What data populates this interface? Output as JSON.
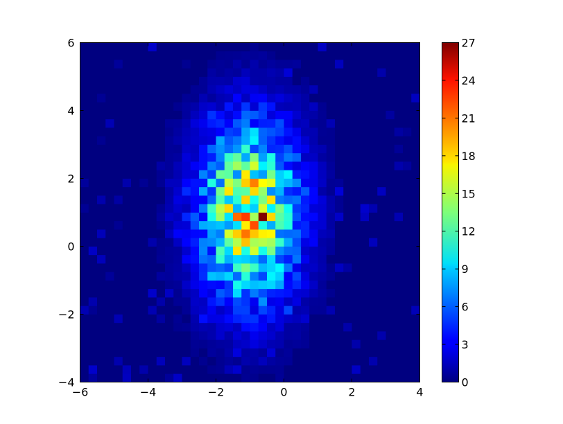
{
  "chart_data": {
    "type": "heatmap",
    "title": "",
    "xlabel": "",
    "ylabel": "",
    "xlim": [
      -6,
      4
    ],
    "ylim": [
      -4,
      6
    ],
    "grid": false,
    "colormap": "jet",
    "bins": 40,
    "x_ticks": [
      -6,
      -4,
      -2,
      0,
      2,
      4
    ],
    "x_tick_labels": [
      "−6",
      "−4",
      "−2",
      "0",
      "2",
      "4"
    ],
    "y_ticks": [
      -4,
      -2,
      0,
      2,
      4,
      6
    ],
    "y_tick_labels": [
      "−4",
      "−2",
      "0",
      "2",
      "4",
      "6"
    ],
    "colorbar": {
      "range": [
        0,
        27
      ],
      "ticks": [
        0,
        3,
        6,
        9,
        12,
        15,
        18,
        21,
        24,
        27
      ],
      "tick_labels": [
        "0",
        "3",
        "6",
        "9",
        "12",
        "15",
        "18",
        "21",
        "24",
        "27"
      ]
    },
    "distribution": {
      "description": "2D histogram of a Gaussian cloud",
      "mean": [
        -1.0,
        1.0
      ],
      "std": [
        1.0,
        1.8
      ],
      "peak_value": 27,
      "peak_location": [
        -0.75,
        0.75
      ]
    }
  }
}
